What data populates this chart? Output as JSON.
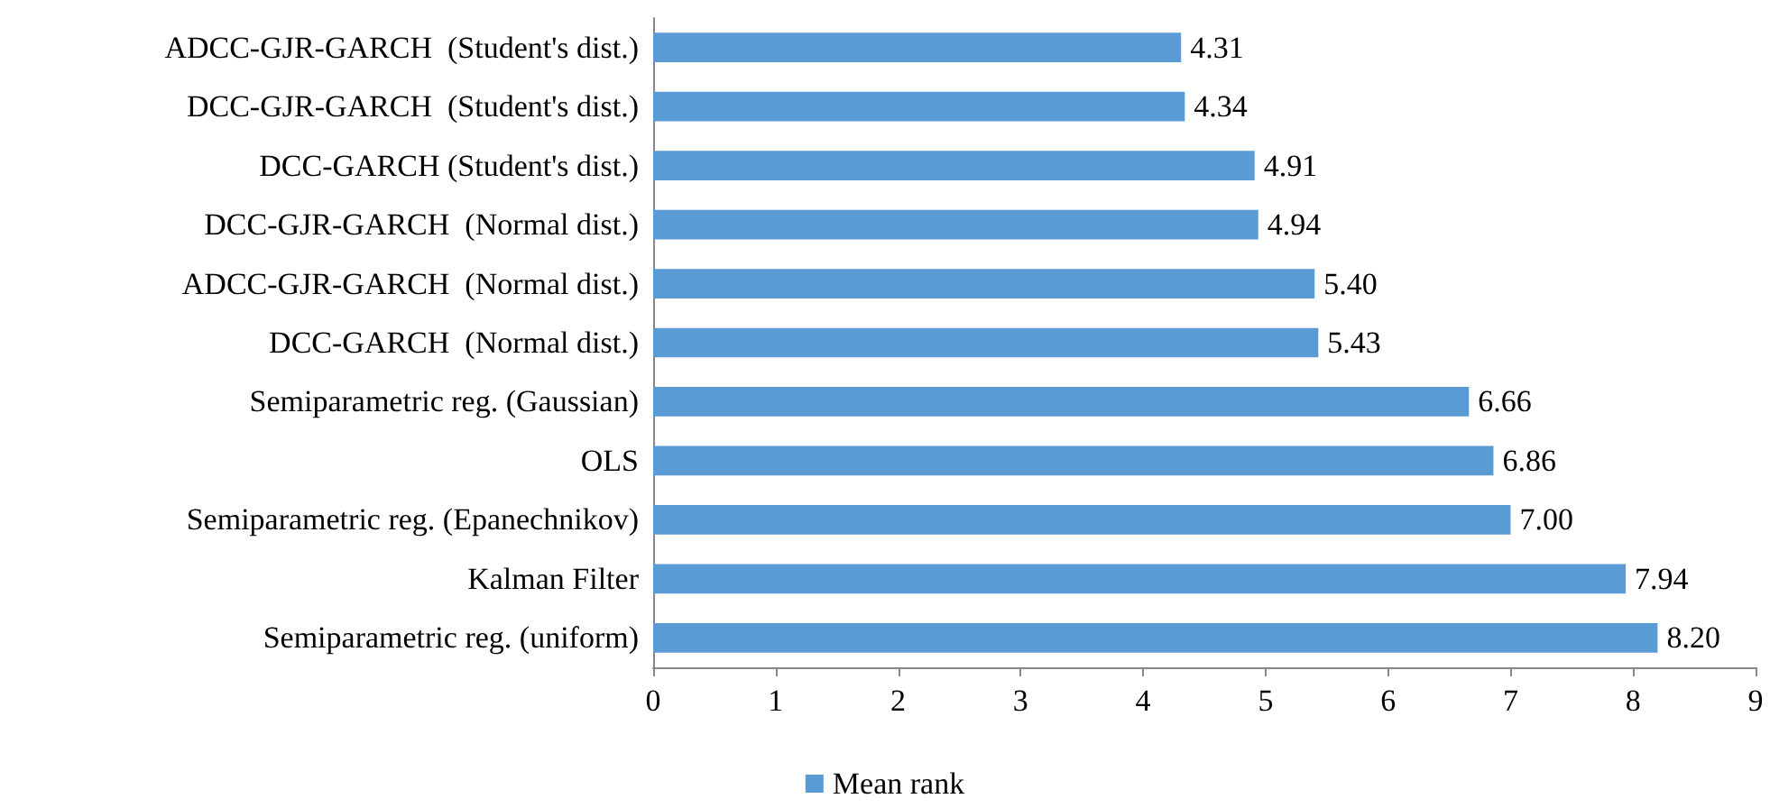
{
  "chart_data": {
    "type": "bar",
    "orientation": "horizontal",
    "categories": [
      "ADCC-GJR-GARCH  (Student's dist.)",
      "DCC-GJR-GARCH  (Student's dist.)",
      "DCC-GARCH (Student's dist.)",
      "DCC-GJR-GARCH  (Normal dist.)",
      "ADCC-GJR-GARCH  (Normal dist.)",
      "DCC-GARCH  (Normal dist.)",
      "Semiparametric reg. (Gaussian)",
      "OLS",
      "Semiparametric reg. (Epanechnikov)",
      "Kalman Filter",
      "Semiparametric reg. (uniform)"
    ],
    "series": [
      {
        "name": "Mean rank",
        "color": "#5b9bd5",
        "values": [
          4.31,
          4.34,
          4.91,
          4.94,
          5.4,
          5.43,
          6.66,
          6.86,
          7.0,
          7.94,
          8.2
        ]
      }
    ],
    "value_labels": [
      "4.31",
      "4.34",
      "4.91",
      "4.94",
      "5.40",
      "5.43",
      "6.66",
      "6.86",
      "7.00",
      "7.94",
      "8.20"
    ],
    "xlim": [
      0,
      9
    ],
    "xticks": [
      0,
      1,
      2,
      3,
      4,
      5,
      6,
      7,
      8,
      9
    ],
    "grid": false,
    "legend": "bottom"
  }
}
